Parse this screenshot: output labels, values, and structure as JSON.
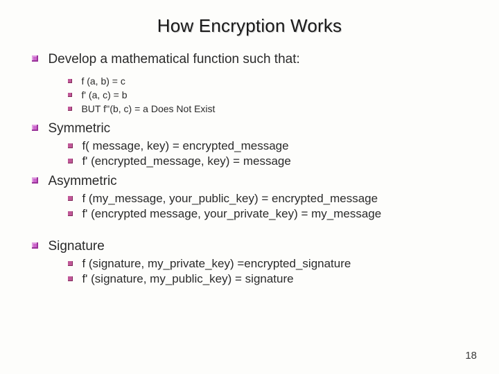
{
  "title": "How Encryption Works",
  "pageNumber": "18",
  "colors": {
    "bg": "#fdfdfb",
    "text": "#2a2a2a",
    "bullet1": "#cc66cc",
    "bullet2": "#c05898",
    "titleShadow": "#c9c9c9"
  },
  "sections": {
    "develop": {
      "heading": "Develop a mathematical function such that:",
      "items": [
        "f (a, b) = c",
        "f' (a, c) = b",
        "BUT  f''(b, c) = a   Does Not Exist"
      ]
    },
    "symmetric": {
      "heading": "Symmetric",
      "items": [
        "f( message, key) = encrypted_message",
        "f' (encrypted_message, key) = message"
      ]
    },
    "asymmetric": {
      "heading": "Asymmetric",
      "items": [
        "f (my_message,  your_public_key) = encrypted_message",
        "f' (encrypted message, your_private_key) = my_message"
      ]
    },
    "signature": {
      "heading": "Signature",
      "items": [
        "f (signature, my_private_key) =encrypted_signature",
        "f' (signature, my_public_key) = signature"
      ]
    }
  }
}
